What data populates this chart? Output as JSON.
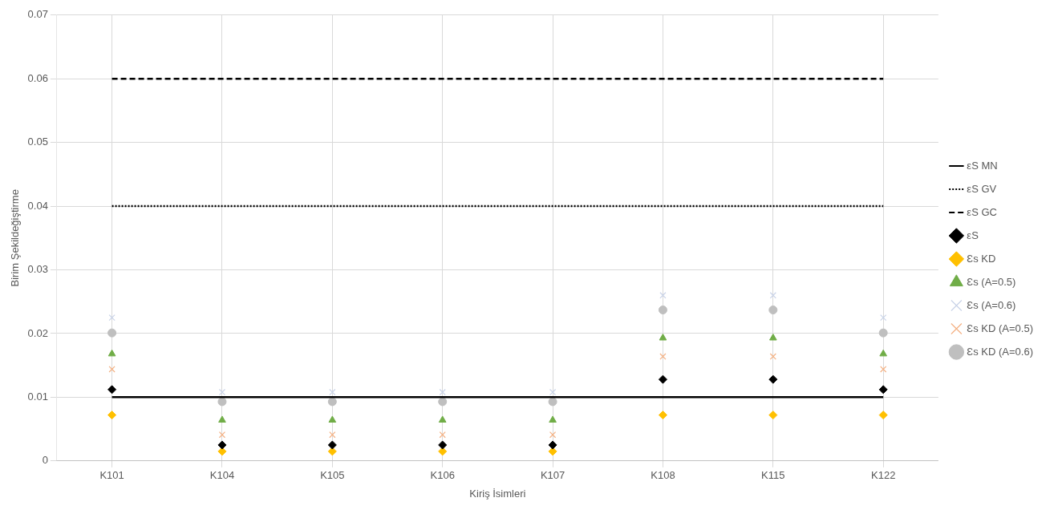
{
  "chart_data": {
    "type": "scatter",
    "xlabel": "Kiriş İsimleri",
    "ylabel": "Birim Şekildeğiştirme",
    "categories": [
      "K101",
      "K104",
      "K105",
      "K106",
      "K107",
      "K108",
      "K115",
      "K122"
    ],
    "ylim": [
      0,
      0.07
    ],
    "yticks": [
      0,
      0.01,
      0.02,
      0.03,
      0.04,
      0.05,
      0.06,
      0.07
    ],
    "grid": true,
    "legend": "right",
    "series": [
      {
        "name": "εS MN",
        "type": "line",
        "color": "#000000",
        "line_style": "solid",
        "marker": "none",
        "values": [
          0.01,
          0.01,
          0.01,
          0.01,
          0.01,
          0.01,
          0.01,
          0.01
        ]
      },
      {
        "name": "εS GV",
        "type": "line",
        "color": "#000000",
        "line_style": "dotted",
        "marker": "none",
        "values": [
          0.04,
          0.04,
          0.04,
          0.04,
          0.04,
          0.04,
          0.04,
          0.04
        ]
      },
      {
        "name": "εS GC",
        "type": "line",
        "color": "#000000",
        "line_style": "dashed",
        "marker": "none",
        "values": [
          0.06,
          0.06,
          0.06,
          0.06,
          0.06,
          0.06,
          0.06,
          0.06
        ]
      },
      {
        "name": "εS",
        "color": "#000000",
        "marker": "diamond",
        "values": [
          0.0112,
          0.0025,
          0.0025,
          0.0025,
          0.0025,
          0.0128,
          0.0128,
          0.0112
        ]
      },
      {
        "name": "Ɛs KD",
        "color": "#ffc000",
        "marker": "diamond",
        "values": [
          0.0072,
          0.0015,
          0.0015,
          0.0015,
          0.0015,
          0.0072,
          0.0072,
          0.0072
        ]
      },
      {
        "name": "Ɛs (A=0.5)",
        "color": "#70ad47",
        "marker": "triangle",
        "values": [
          0.0168,
          0.0064,
          0.0064,
          0.0064,
          0.0064,
          0.0193,
          0.0193,
          0.0168
        ]
      },
      {
        "name": "Ɛs (A=0.6)",
        "color": "#c9d3e8",
        "marker": "cross",
        "values": [
          0.0225,
          0.0108,
          0.0108,
          0.0108,
          0.0108,
          0.026,
          0.026,
          0.0225
        ]
      },
      {
        "name": "Ɛs KD (A=0.5)",
        "color": "#f4b183",
        "marker": "cross",
        "values": [
          0.0144,
          0.0041,
          0.0041,
          0.0041,
          0.0041,
          0.0164,
          0.0164,
          0.0144
        ]
      },
      {
        "name": "Ɛs KD (A=0.6)",
        "color": "#bfbfbf",
        "marker": "circle",
        "values": [
          0.0201,
          0.0093,
          0.0093,
          0.0093,
          0.0093,
          0.0237,
          0.0237,
          0.0201
        ]
      }
    ]
  }
}
